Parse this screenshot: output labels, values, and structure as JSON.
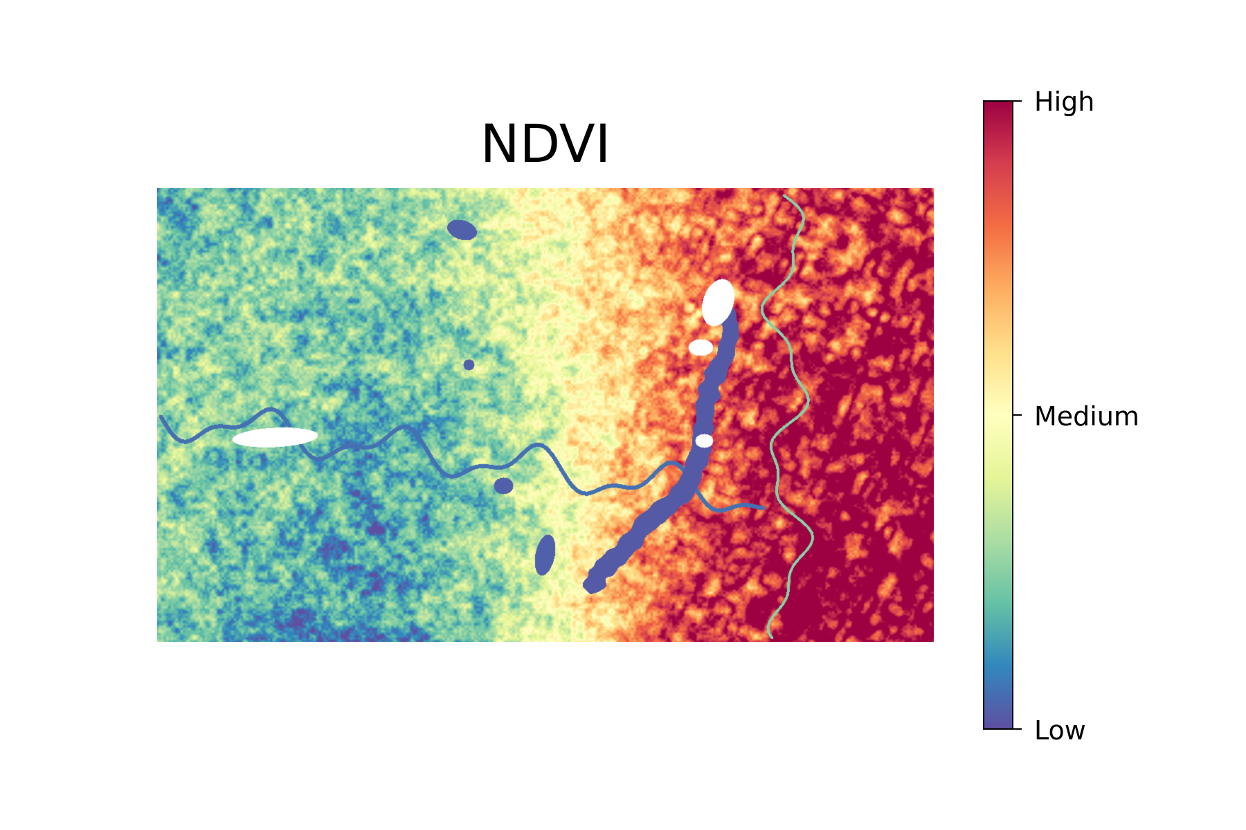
{
  "figure": {
    "title": "NDVI"
  },
  "map": {
    "colormap": "Spectral_r",
    "colormap_stops": [
      "#5e4fa2",
      "#3288bd",
      "#66c2a5",
      "#abdda4",
      "#e6f598",
      "#ffffbf",
      "#fee08b",
      "#fdae61",
      "#f46d43",
      "#d53e4f",
      "#9e0142"
    ],
    "nodata_color": "#ffffff"
  },
  "colorbar": {
    "labels": {
      "high": "High",
      "medium": "Medium",
      "low": "Low"
    }
  }
}
